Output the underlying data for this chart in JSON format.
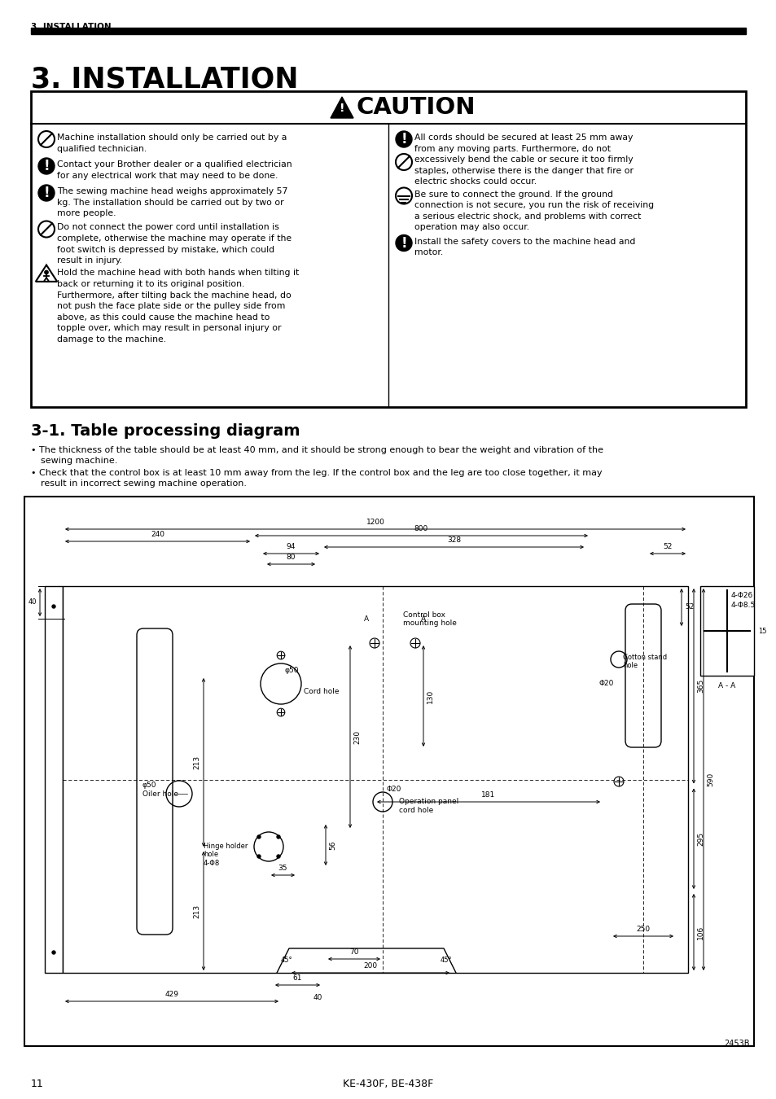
{
  "page_number": "11",
  "footer_text": "KE-430F, BE-438F",
  "header_label": "3. INSTALLATION",
  "main_title": "3. INSTALLATION",
  "caution_title": "CAUTION",
  "section_title": "3-1. Table processing diagram",
  "diagram_label": "2453B",
  "bg_color": "#ffffff",
  "text_color": "#000000"
}
